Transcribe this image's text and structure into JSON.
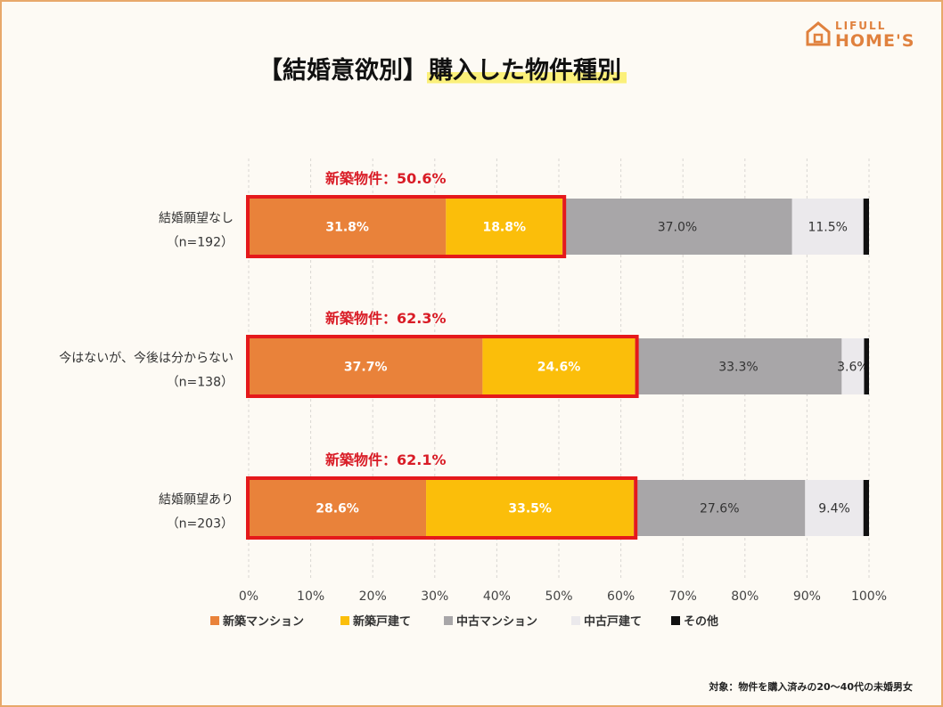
{
  "title": {
    "prefix": "【結婚意欲別】",
    "highlight": "購入した物件種別"
  },
  "logo": {
    "line1": "LIFULL",
    "line2": "HOME'S"
  },
  "footnote": "対象：物件を購入済みの20〜40代の未婚男女",
  "colors": {
    "new_mansion": "#e9823a",
    "new_house": "#fbbe0a",
    "used_mansion": "#a8a6a8",
    "used_house": "#ebe9ec",
    "other": "#111111",
    "highlight_box": "#e5191b",
    "annotation": "#d91c26"
  },
  "chart_data": {
    "type": "bar",
    "orientation": "horizontal",
    "stacked": true,
    "title": "【結婚意欲別】購入した物件種別",
    "categories": [
      {
        "line1": "結婚願望なし",
        "line2": "（n=192）"
      },
      {
        "line1": "今はないが、今後は分からない",
        "line2": "（n=138）"
      },
      {
        "line1": "結婚願望あり",
        "line2": "（n=203）"
      }
    ],
    "series": [
      {
        "name": "新築マンション",
        "values": [
          31.8,
          37.7,
          28.6
        ],
        "labels": [
          "31.8%",
          "37.7%",
          "28.6%"
        ],
        "label_color": "#ffffff"
      },
      {
        "name": "新築戸建て",
        "values": [
          18.8,
          24.6,
          33.5
        ],
        "labels": [
          "18.8%",
          "24.6%",
          "33.5%"
        ],
        "label_color": "#ffffff"
      },
      {
        "name": "中古マンション",
        "values": [
          37.0,
          33.3,
          27.6
        ],
        "labels": [
          "37.0%",
          "33.3%",
          "27.6%"
        ],
        "label_color": "#333333"
      },
      {
        "name": "中古戸建て",
        "values": [
          11.5,
          3.6,
          9.4
        ],
        "labels": [
          "11.5%",
          "3.6%",
          "9.4%"
        ],
        "label_color": "#333333"
      },
      {
        "name": "その他",
        "values": [
          0.9,
          0.8,
          0.9
        ],
        "labels": [
          "",
          "",
          ""
        ],
        "label_color": "#333333"
      }
    ],
    "annotations": [
      {
        "text": "新築物件：50.6%",
        "value": 50.6
      },
      {
        "text": "新築物件：62.3%",
        "value": 62.3
      },
      {
        "text": "新築物件：62.1%",
        "value": 62.1
      }
    ],
    "xlim": [
      0,
      100
    ],
    "xticks": [
      "0%",
      "10%",
      "20%",
      "30%",
      "40%",
      "50%",
      "60%",
      "70%",
      "80%",
      "90%",
      "100%"
    ],
    "grid": "vertical-dashed",
    "legend": "bottom"
  }
}
